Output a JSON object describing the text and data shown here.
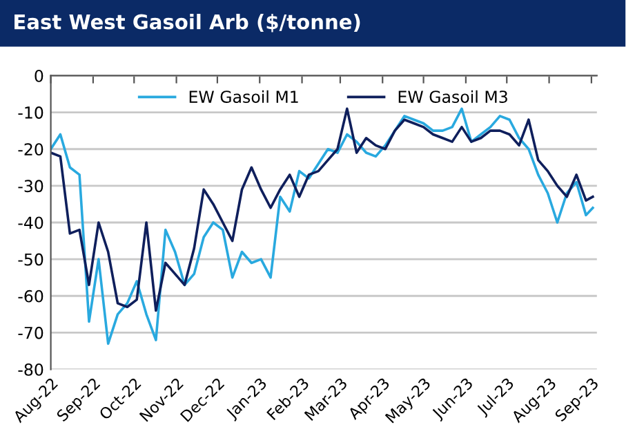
{
  "chart_data": {
    "type": "line",
    "title": "East West Gasoil Arb ($/tonne)",
    "x": [
      "2022-08-01",
      "2022-08-08",
      "2022-08-15",
      "2022-08-22",
      "2022-08-29",
      "2022-09-05",
      "2022-09-12",
      "2022-09-19",
      "2022-09-26",
      "2022-10-03",
      "2022-10-10",
      "2022-10-17",
      "2022-10-24",
      "2022-10-31",
      "2022-11-07",
      "2022-11-14",
      "2022-11-21",
      "2022-11-28",
      "2022-12-05",
      "2022-12-12",
      "2022-12-19",
      "2022-12-26",
      "2023-01-02",
      "2023-01-09",
      "2023-01-16",
      "2023-01-23",
      "2023-01-30",
      "2023-02-06",
      "2023-02-13",
      "2023-02-20",
      "2023-02-27",
      "2023-03-06",
      "2023-03-13",
      "2023-03-20",
      "2023-03-27",
      "2023-04-03",
      "2023-04-10",
      "2023-04-17",
      "2023-04-24",
      "2023-05-01",
      "2023-05-08",
      "2023-05-15",
      "2023-05-22",
      "2023-05-29",
      "2023-06-05",
      "2023-06-12",
      "2023-06-19",
      "2023-06-26",
      "2023-07-03",
      "2023-07-10",
      "2023-07-17",
      "2023-07-24",
      "2023-07-31",
      "2023-08-07",
      "2023-08-14",
      "2023-08-21",
      "2023-08-28",
      "2023-09-02"
    ],
    "series": [
      {
        "name": "EW Gasoil M1",
        "color": "#29a9df",
        "values": [
          -20,
          -16,
          -25,
          -27,
          -67,
          -50,
          -73,
          -65,
          -62,
          -56,
          -65,
          -72,
          -42,
          -48,
          -57,
          -54,
          -44,
          -40,
          -42,
          -55,
          -48,
          -51,
          -50,
          -55,
          -33,
          -37,
          -26,
          -28,
          -24,
          -20,
          -21,
          -16,
          -18,
          -21,
          -22,
          -19,
          -15,
          -11,
          -12,
          -13,
          -15,
          -15,
          -14,
          -9,
          -18,
          -16,
          -14,
          -11,
          -12,
          -17,
          -20,
          -27,
          -32,
          -40,
          -32,
          -29,
          -38,
          -36
        ]
      },
      {
        "name": "EW Gasoil M3",
        "color": "#0f1f5c",
        "values": [
          -21,
          -22,
          -43,
          -42,
          -57,
          -40,
          -48,
          -62,
          -63,
          -61,
          -40,
          -64,
          -51,
          -54,
          -57,
          -47,
          -31,
          -35,
          -40,
          -45,
          -31,
          -25,
          -31,
          -36,
          -31,
          -27,
          -33,
          -27,
          -26,
          -23,
          -20,
          -9,
          -21,
          -17,
          -19,
          -20,
          -15,
          -12,
          -13,
          -14,
          -16,
          -17,
          -18,
          -14,
          -18,
          -17,
          -15,
          -15,
          -16,
          -19,
          -12,
          -23,
          -26,
          -30,
          -33,
          -27,
          -34,
          -33
        ]
      }
    ],
    "xlim": [
      "2022-08-01",
      "2023-09-05"
    ],
    "xticks": [
      {
        "value": "2022-08-01",
        "label": "Aug-22"
      },
      {
        "value": "2022-09-01",
        "label": "Sep-22"
      },
      {
        "value": "2022-10-01",
        "label": "Oct-22"
      },
      {
        "value": "2022-11-01",
        "label": "Nov-22"
      },
      {
        "value": "2022-12-01",
        "label": "Dec-22"
      },
      {
        "value": "2023-01-01",
        "label": "Jan-23"
      },
      {
        "value": "2023-02-01",
        "label": "Feb-23"
      },
      {
        "value": "2023-03-01",
        "label": "Mar-23"
      },
      {
        "value": "2023-04-01",
        "label": "Apr-23"
      },
      {
        "value": "2023-05-01",
        "label": "May-23"
      },
      {
        "value": "2023-06-01",
        "label": "Jun-23"
      },
      {
        "value": "2023-07-01",
        "label": "Jul-23"
      },
      {
        "value": "2023-08-01",
        "label": "Aug-23"
      },
      {
        "value": "2023-09-01",
        "label": "Sep-23"
      }
    ],
    "ylim": [
      -80,
      0
    ],
    "yticks": [
      -80,
      -70,
      -60,
      -50,
      -40,
      -30,
      -20,
      -10,
      0
    ],
    "grid": "y",
    "legend": "top",
    "marker": "none",
    "line_style": "solid"
  }
}
